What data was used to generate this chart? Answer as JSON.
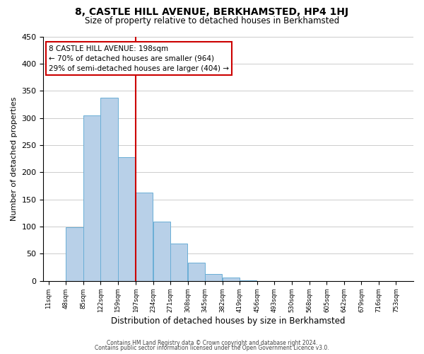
{
  "title": "8, CASTLE HILL AVENUE, BERKHAMSTED, HP4 1HJ",
  "subtitle": "Size of property relative to detached houses in Berkhamsted",
  "xlabel": "Distribution of detached houses by size in Berkhamsted",
  "ylabel": "Number of detached properties",
  "bin_labels": [
    "11sqm",
    "48sqm",
    "85sqm",
    "122sqm",
    "159sqm",
    "197sqm",
    "234sqm",
    "271sqm",
    "308sqm",
    "345sqm",
    "382sqm",
    "419sqm",
    "456sqm",
    "493sqm",
    "530sqm",
    "568sqm",
    "605sqm",
    "642sqm",
    "679sqm",
    "716sqm",
    "753sqm"
  ],
  "bin_edges_vals": [
    11,
    48,
    85,
    122,
    159,
    197,
    234,
    271,
    308,
    345,
    382,
    419,
    456,
    493,
    530,
    568,
    605,
    642,
    679,
    716,
    753,
    790
  ],
  "bar_heights": [
    0,
    99,
    305,
    337,
    228,
    163,
    109,
    69,
    34,
    13,
    6,
    1,
    0,
    0,
    0,
    0,
    0,
    0,
    0,
    0,
    0
  ],
  "bar_color": "#b8d0e8",
  "bar_edgecolor": "#6aaed6",
  "property_line_x": 197,
  "property_line_color": "#cc0000",
  "annotation_title": "8 CASTLE HILL AVENUE: 198sqm",
  "annotation_line1": "← 70% of detached houses are smaller (964)",
  "annotation_line2": "29% of semi-detached houses are larger (404) →",
  "annotation_box_edgecolor": "#cc0000",
  "ylim": [
    0,
    450
  ],
  "yticks": [
    0,
    50,
    100,
    150,
    200,
    250,
    300,
    350,
    400,
    450
  ],
  "footer1": "Contains HM Land Registry data © Crown copyright and database right 2024.",
  "footer2": "Contains public sector information licensed under the Open Government Licence v3.0.",
  "background_color": "#ffffff",
  "grid_color": "#cccccc"
}
